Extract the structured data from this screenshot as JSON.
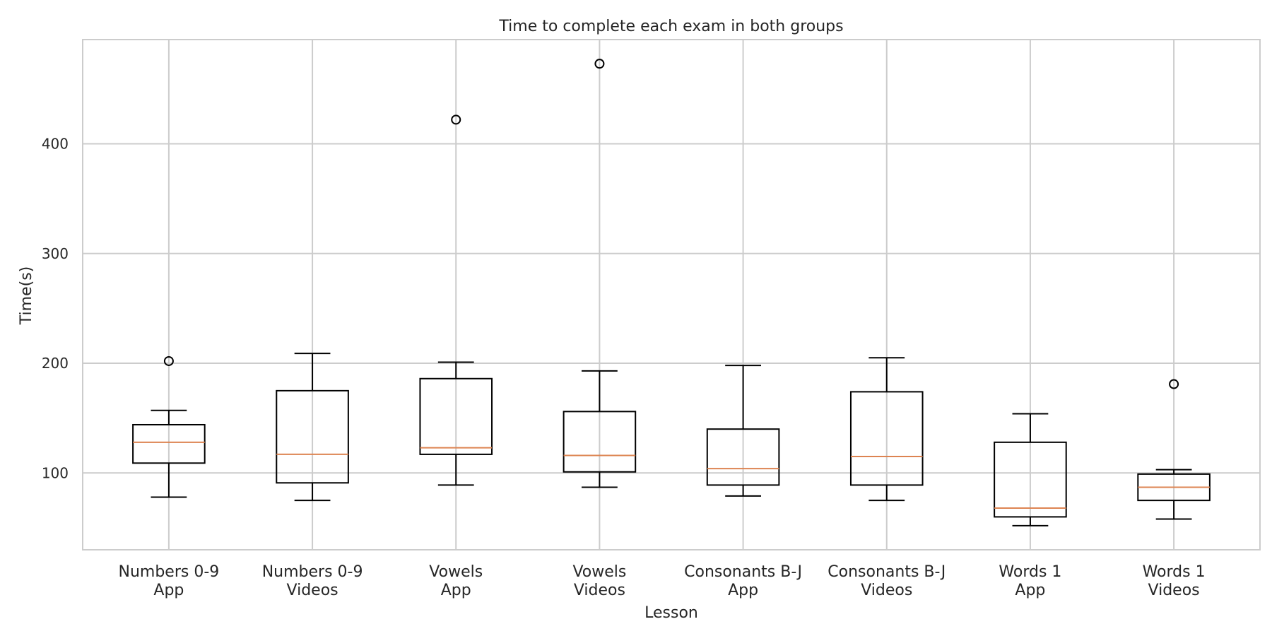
{
  "chart_data": {
    "type": "box",
    "title": "Time to complete each exam in both groups",
    "xlabel": "Lesson",
    "ylabel": "Time(s)",
    "ylim": [
      30,
      495
    ],
    "yticks": [
      100,
      200,
      300,
      400
    ],
    "grid": true,
    "colors": {
      "median": "#dd8452",
      "box": "#000000",
      "grid": "#cccccc",
      "frame": "#cccccc"
    },
    "categories": [
      [
        "Numbers 0-9",
        "App"
      ],
      [
        "Numbers 0-9",
        "Videos"
      ],
      [
        "Vowels",
        "App"
      ],
      [
        "Vowels",
        "Videos"
      ],
      [
        "Consonants B-J",
        "App"
      ],
      [
        "Consonants B-J",
        "Videos"
      ],
      [
        "Words 1",
        "App"
      ],
      [
        "Words 1",
        "Videos"
      ]
    ],
    "boxes": [
      {
        "whislo": 78,
        "q1": 109,
        "med": 128,
        "q3": 144,
        "whishi": 157,
        "fliers": [
          202
        ]
      },
      {
        "whislo": 75,
        "q1": 91,
        "med": 117,
        "q3": 175,
        "whishi": 209,
        "fliers": []
      },
      {
        "whislo": 89,
        "q1": 117,
        "med": 123,
        "q3": 186,
        "whishi": 201,
        "fliers": [
          422
        ]
      },
      {
        "whislo": 87,
        "q1": 101,
        "med": 116,
        "q3": 156,
        "whishi": 193,
        "fliers": [
          473
        ]
      },
      {
        "whislo": 79,
        "q1": 89,
        "med": 104,
        "q3": 140,
        "whishi": 198,
        "fliers": []
      },
      {
        "whislo": 75,
        "q1": 89,
        "med": 115,
        "q3": 174,
        "whishi": 205,
        "fliers": []
      },
      {
        "whislo": 52,
        "q1": 60,
        "med": 68,
        "q3": 128,
        "whishi": 154,
        "fliers": []
      },
      {
        "whislo": 58,
        "q1": 75,
        "med": 87,
        "q3": 99,
        "whishi": 103,
        "fliers": [
          181
        ]
      }
    ]
  }
}
